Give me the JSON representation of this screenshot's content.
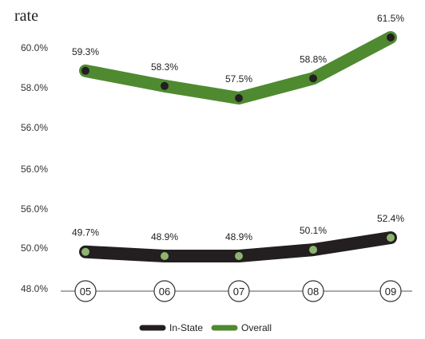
{
  "chart_data": {
    "type": "line",
    "title": "rate",
    "categories": [
      "05",
      "06",
      "07",
      "08",
      "09"
    ],
    "y_tick_labels": [
      "48.0%",
      "50.0%",
      "56.0%",
      "56.0%",
      "56.0%",
      "58.0%",
      "60.0%"
    ],
    "series": [
      {
        "name": "In-State",
        "values": [
          49.7,
          48.9,
          48.9,
          50.1,
          52.4
        ],
        "labels": [
          "49.7%",
          "48.9%",
          "48.9%",
          "50.1%",
          "52.4%"
        ],
        "line_color": "#231f20",
        "marker_color": "#8db56e"
      },
      {
        "name": "Overall",
        "values": [
          59.3,
          58.3,
          57.5,
          58.8,
          61.5
        ],
        "labels": [
          "59.3%",
          "58.3%",
          "57.5%",
          "58.8%",
          "61.5%"
        ],
        "line_color": "#4f8a31",
        "marker_color": "#231f20"
      }
    ],
    "legend_position": "bottom",
    "grid": false
  }
}
